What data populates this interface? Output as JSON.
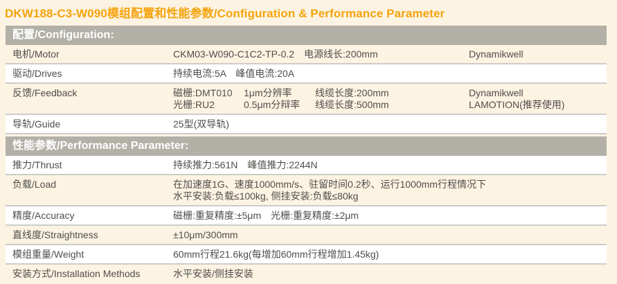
{
  "title": "DKW188-C3-W090模组配置和性能参数/Configuration & Performance Parameter",
  "colors": {
    "title_orange": "#f4a40d",
    "header_bar_gray": "#b3b0a8",
    "row_cream": "#fdf3e2",
    "row_white": "#ffffff",
    "text_gray": "#4f4e4b",
    "separator_gray": "#ccccca"
  },
  "config": {
    "header": "配置/Configuration:",
    "rows": [
      {
        "label": "电机/Motor",
        "value": "CKM03-W090-C1C2-TP-0.2　电源线长:200mm",
        "brand": "Dynamikwell"
      },
      {
        "label": "驱动/Drives",
        "value": "持续电流:5A　峰值电流:20A"
      },
      {
        "label": "反馈/Feedback",
        "line1": {
          "device": "磁栅:DMT010",
          "resolution": "1μm分辨率",
          "cable": "线缆长度:200mm",
          "brand": "Dynamikwell"
        },
        "line2": {
          "device": "光栅:RU2",
          "resolution": "0.5μm分辩率",
          "cable": "线缆长度:500mm",
          "brand": "LAMOTION(推荐使用)"
        }
      },
      {
        "label": "导轨/Guide",
        "value": "25型(双导轨)"
      }
    ]
  },
  "performance": {
    "header": "性能参数/Performance Parameter:",
    "rows": [
      {
        "label": "推力/Thrust",
        "value": "持续推力:561N　峰值推力:2244N"
      },
      {
        "label": "负载/Load",
        "line1": "在加速度1G、速度1000mm/s、驻留时间0.2秒、运行1000mm行程情况下",
        "line2": "水平安装:负载≤100kg, 侧挂安装:负载≤80kg"
      },
      {
        "label": "精度/Accuracy",
        "value": "磁栅:重复精度:±5μm　光栅:重复精度:±2μm"
      },
      {
        "label": "直线度/Straightness",
        "value": "±10μm/300mm"
      },
      {
        "label": "模组重量/Weight",
        "value": "60mm行程21.6kg(每增加60mm行程增加1.45kg)"
      },
      {
        "label": "安装方式/Installation Methods",
        "value": "水平安装/侧挂安装"
      }
    ]
  }
}
